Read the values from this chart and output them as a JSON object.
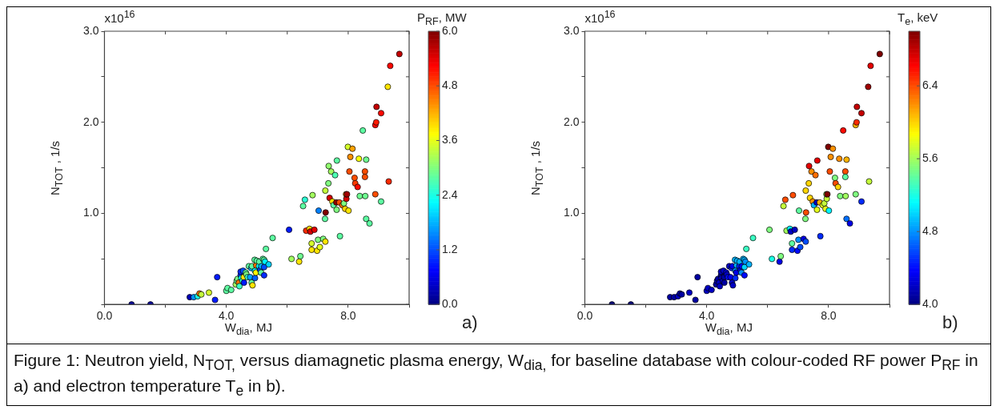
{
  "chart_data": [
    {
      "type": "scatter",
      "xlabel": "W$_{dia}$, MJ",
      "ylabel": "N$_{TOT}$ , 1/s",
      "clabel": "P$_{RF}$, MW",
      "marker": "circle",
      "annotations": [
        "x10$^{16}$",
        "a)",
        "Figure 1: Neutron yield, N$_{TOT,}$ versus diamagnetic plasma energy, W$_{dia,}$ for baseline database with colour-coded RF power P$_{RF}$ in a) and electron temperature T$_{e}$ in b)."
      ],
      "xlim": [
        0,
        10
      ],
      "ylim": [
        0,
        3
      ],
      "xticks": [
        {
          "value": 0,
          "label": "0.0"
        },
        {
          "value": 2,
          "label": null
        },
        {
          "value": 4,
          "label": "4.0"
        },
        {
          "value": 6,
          "label": null
        },
        {
          "value": 8,
          "label": "8.0"
        },
        {
          "value": 10,
          "label": null
        }
      ],
      "yticks": [
        {
          "value": 0,
          "label": null
        },
        {
          "value": 0.5,
          "label": null
        },
        {
          "value": 1,
          "label": "1.0"
        },
        {
          "value": 1.5,
          "label": null
        },
        {
          "value": 2,
          "label": "2.0"
        },
        {
          "value": 2.5,
          "label": null
        },
        {
          "value": 3,
          "label": "3.0"
        }
      ],
      "clim": [
        0,
        6
      ],
      "cticks": [
        {
          "value": 0,
          "label": "0.0"
        },
        {
          "value": 1.2,
          "label": "1.2"
        },
        {
          "value": 2.4,
          "label": "2.4"
        },
        {
          "value": 3.6,
          "label": "3.6"
        },
        {
          "value": 4.8,
          "label": "4.8"
        },
        {
          "value": 6,
          "label": "6.0"
        }
      ],
      "x": [
        0.89,
        1.51,
        2.8,
        2.93,
        3.06,
        3.12,
        3.18,
        3.43,
        3.63,
        3.7,
        4.0,
        4.04,
        4.16,
        4.31,
        4.34,
        4.37,
        4.41,
        4.43,
        4.47,
        4.47,
        4.49,
        4.53,
        4.57,
        4.55,
        4.58,
        4.64,
        4.66,
        4.7,
        4.74,
        4.78,
        4.82,
        4.83,
        4.86,
        4.84,
        4.94,
        4.94,
        4.93,
        4.97,
        4.98,
        5.0,
        5.07,
        5.08,
        5.11,
        5.14,
        5.15,
        5.2,
        5.24,
        5.24,
        5.27,
        5.24,
        5.39,
        5.3,
        5.52,
        6.06,
        6.14,
        6.39,
        6.43,
        6.52,
        6.58,
        6.62,
        6.73,
        6.76,
        6.8,
        6.8,
        6.83,
        6.89,
        6.98,
        7.01,
        7.03,
        7.07,
        7.18,
        7.24,
        7.25,
        7.25,
        7.26,
        7.35,
        7.36,
        7.39,
        7.44,
        7.48,
        7.52,
        7.57,
        7.61,
        7.62,
        7.63,
        7.73,
        7.71,
        7.81,
        7.86,
        7.9,
        7.94,
        7.93,
        7.96,
        8.01,
        7.99,
        8.04,
        8.07,
        8.14,
        8.21,
        8.23,
        8.31,
        8.35,
        8.38,
        8.48,
        8.55,
        8.55,
        8.56,
        8.59,
        8.59,
        8.7,
        8.89,
        8.92,
        8.93,
        8.89,
        9.08,
        9.08,
        9.3,
        9.33,
        9.38,
        9.68
      ],
      "values": [
        0.0,
        0.0,
        0.08,
        0.08,
        0.09,
        0.12,
        0.11,
        0.13,
        0.05,
        0.3,
        0.15,
        0.18,
        0.16,
        0.22,
        0.26,
        0.28,
        0.24,
        0.2,
        0.32,
        0.36,
        0.29,
        0.26,
        0.3,
        0.37,
        0.24,
        0.35,
        0.33,
        0.3,
        0.42,
        0.3,
        0.4,
        0.24,
        0.21,
        0.42,
        0.29,
        0.37,
        0.49,
        0.35,
        0.43,
        0.48,
        0.42,
        0.47,
        0.38,
        0.35,
        0.42,
        0.5,
        0.49,
        0.41,
        0.47,
        0.32,
        0.44,
        0.61,
        0.73,
        0.82,
        0.5,
        0.47,
        0.53,
        1.08,
        1.15,
        0.81,
        0.83,
        0.8,
        0.67,
        0.6,
        1.2,
        0.82,
        0.59,
        0.71,
        1.03,
        0.63,
        0.72,
        0.94,
        0.69,
        1.25,
        1.01,
        1.33,
        1.52,
        1.17,
        1.46,
        1.13,
        1.09,
        1.42,
        1.12,
        1.04,
        1.58,
        0.75,
        1.12,
        1.09,
        1.11,
        1.05,
        1.16,
        1.21,
        1.21,
        1.03,
        1.73,
        1.46,
        1.62,
        1.71,
        1.39,
        1.33,
        1.29,
        1.6,
        1.19,
        1.91,
        1.46,
        1.4,
        1.19,
        1.59,
        0.94,
        0.89,
        1.97,
        2.0,
        2.17,
        1.21,
        2.1,
        1.13,
        2.39,
        1.35,
        2.62,
        2.75
      ],
      "cvalues": [
        0.2,
        0.2,
        0.3,
        1.6,
        2.4,
        4.6,
        3.4,
        3.5,
        0.9,
        0.9,
        2.8,
        2.8,
        2.8,
        3.2,
        2.8,
        3.0,
        4.6,
        2.6,
        1.0,
        1.0,
        2.2,
        2.5,
        3.9,
        1.2,
        0.9,
        2.8,
        3.0,
        2.6,
        2.8,
        1.7,
        1.8,
        2.8,
        3.9,
        2.8,
        1.3,
        2.2,
        2.8,
        3.8,
        4.6,
        2.8,
        2.2,
        2.8,
        1.1,
        2.8,
        1.8,
        2.8,
        2.8,
        1.2,
        2.2,
        1.0,
        2.0,
        2.8,
        2.8,
        0.9,
        3.2,
        3.9,
        2.9,
        2.8,
        2.5,
        5.0,
        4.0,
        5.5,
        3.5,
        3.9,
        3.2,
        5.4,
        3.9,
        3.0,
        1.5,
        3.6,
        3.0,
        2.8,
        3.9,
        3.4,
        6.0,
        3.0,
        3.1,
        5.5,
        3.2,
        3.9,
        2.8,
        2.7,
        5.9,
        3.0,
        2.8,
        2.8,
        4.8,
        4.6,
        3.0,
        4.0,
        5.5,
        4.3,
        5.8,
        3.9,
        3.5,
        4.8,
        4.4,
        4.3,
        4.8,
        4.9,
        5.2,
        3.7,
        2.9,
        2.8,
        4.8,
        4.8,
        2.9,
        2.9,
        2.8,
        2.8,
        5.2,
        5.1,
        5.6,
        4.8,
        5.2,
        2.8,
        3.9,
        5.0,
        5.2,
        5.6
      ]
    },
    {
      "type": "scatter",
      "xlabel": "W$_{dia}$, MJ",
      "ylabel": "N$_{TOT}$ , 1/s",
      "clabel": "T$_{e}$, keV",
      "marker": "circle",
      "annotations": [
        "x10$^{16}$",
        "b)"
      ],
      "xlim": [
        0,
        10
      ],
      "ylim": [
        0,
        3
      ],
      "xticks": [
        {
          "value": 0,
          "label": "0.0"
        },
        {
          "value": 2,
          "label": null
        },
        {
          "value": 4,
          "label": "4.0"
        },
        {
          "value": 6,
          "label": null
        },
        {
          "value": 8,
          "label": "8.0"
        },
        {
          "value": 10,
          "label": null
        }
      ],
      "yticks": [
        {
          "value": 0,
          "label": null
        },
        {
          "value": 0.5,
          "label": null
        },
        {
          "value": 1,
          "label": "1.0"
        },
        {
          "value": 1.5,
          "label": null
        },
        {
          "value": 2,
          "label": "2.0"
        },
        {
          "value": 2.5,
          "label": null
        },
        {
          "value": 3,
          "label": "3.0"
        }
      ],
      "clim": [
        4,
        7
      ],
      "cticks": [
        {
          "value": 4,
          "label": "4.0"
        },
        {
          "value": 4.8,
          "label": "4.8"
        },
        {
          "value": 5.6,
          "label": "5.6"
        },
        {
          "value": 6.4,
          "label": "6.4"
        }
      ],
      "x": [
        0.89,
        1.51,
        2.8,
        2.93,
        3.06,
        3.12,
        3.18,
        3.43,
        3.63,
        3.7,
        4.0,
        4.04,
        4.16,
        4.31,
        4.34,
        4.37,
        4.41,
        4.43,
        4.47,
        4.47,
        4.49,
        4.53,
        4.57,
        4.55,
        4.58,
        4.64,
        4.66,
        4.7,
        4.74,
        4.78,
        4.82,
        4.83,
        4.86,
        4.84,
        4.94,
        4.94,
        4.93,
        4.97,
        4.98,
        5.0,
        5.07,
        5.08,
        5.11,
        5.14,
        5.15,
        5.2,
        5.24,
        5.24,
        5.27,
        5.24,
        5.39,
        5.3,
        5.52,
        6.06,
        6.14,
        6.39,
        6.43,
        6.52,
        6.58,
        6.62,
        6.73,
        6.76,
        6.8,
        6.8,
        6.83,
        6.89,
        6.98,
        7.01,
        7.03,
        7.07,
        7.18,
        7.24,
        7.25,
        7.25,
        7.26,
        7.35,
        7.36,
        7.39,
        7.44,
        7.48,
        7.52,
        7.57,
        7.61,
        7.62,
        7.63,
        7.73,
        7.71,
        7.81,
        7.86,
        7.9,
        7.94,
        7.93,
        7.96,
        8.01,
        7.99,
        8.04,
        8.07,
        8.14,
        8.21,
        8.23,
        8.31,
        8.35,
        8.38,
        8.48,
        8.55,
        8.55,
        8.56,
        8.59,
        8.59,
        8.7,
        8.89,
        8.92,
        8.93,
        8.89,
        9.08,
        9.08,
        9.3,
        9.33,
        9.38,
        9.68
      ],
      "values": [
        0.0,
        0.0,
        0.08,
        0.08,
        0.09,
        0.12,
        0.11,
        0.13,
        0.05,
        0.3,
        0.15,
        0.18,
        0.16,
        0.22,
        0.26,
        0.28,
        0.24,
        0.2,
        0.32,
        0.36,
        0.29,
        0.26,
        0.3,
        0.37,
        0.24,
        0.35,
        0.33,
        0.3,
        0.42,
        0.3,
        0.4,
        0.24,
        0.21,
        0.42,
        0.29,
        0.37,
        0.49,
        0.35,
        0.43,
        0.48,
        0.42,
        0.47,
        0.38,
        0.35,
        0.42,
        0.5,
        0.49,
        0.41,
        0.47,
        0.32,
        0.44,
        0.61,
        0.73,
        0.82,
        0.5,
        0.47,
        0.53,
        1.08,
        1.15,
        0.81,
        0.83,
        0.8,
        0.67,
        0.6,
        1.2,
        0.82,
        0.59,
        0.71,
        1.03,
        0.63,
        0.72,
        0.94,
        0.69,
        1.25,
        1.01,
        1.33,
        1.52,
        1.17,
        1.46,
        1.13,
        1.09,
        1.42,
        1.12,
        1.04,
        1.58,
        0.75,
        1.12,
        1.09,
        1.11,
        1.05,
        1.16,
        1.21,
        1.21,
        1.03,
        1.73,
        1.46,
        1.62,
        1.71,
        1.39,
        1.33,
        1.29,
        1.6,
        1.19,
        1.91,
        1.46,
        1.4,
        1.19,
        1.59,
        0.94,
        0.89,
        1.97,
        2.0,
        2.17,
        1.21,
        2.1,
        1.13,
        2.39,
        1.35,
        2.62,
        2.75
      ],
      "cvalues": [
        4.0,
        4.0,
        4.1,
        4.1,
        4.2,
        4.1,
        4.1,
        4.2,
        4.1,
        4.1,
        4.2,
        4.2,
        4.2,
        4.1,
        4.2,
        4.1,
        4.2,
        4.2,
        4.1,
        4.2,
        4.2,
        4.2,
        4.1,
        4.2,
        4.1,
        4.3,
        4.2,
        4.4,
        4.2,
        4.3,
        4.5,
        4.2,
        4.2,
        4.3,
        4.5,
        4.8,
        4.9,
        4.3,
        4.9,
        4.9,
        4.5,
        4.9,
        4.3,
        4.8,
        4.4,
        4.9,
        4.9,
        5.0,
        4.8,
        4.4,
        4.9,
        5.3,
        5.3,
        5.5,
        5.2,
        4.3,
        5.5,
        5.7,
        6.4,
        5.6,
        5.1,
        4.2,
        5.4,
        4.5,
        6.4,
        4.2,
        4.4,
        4.8,
        5.4,
        4.6,
        4.3,
        5.5,
        4.6,
        6.0,
        6.4,
        6.0,
        6.7,
        6.0,
        6.2,
        6.2,
        4.9,
        6.3,
        4.2,
        5.8,
        6.7,
        4.5,
        6.1,
        5.8,
        5.7,
        5.8,
        5.7,
        5.6,
        7.0,
        5.1,
        7.0,
        6.4,
        6.2,
        6.2,
        5.5,
        6.4,
        6.0,
        6.2,
        5.5,
        6.6,
        6.4,
        5.4,
        5.6,
        6.1,
        4.7,
        4.3,
        6.1,
        6.5,
        6.8,
        5.5,
        6.8,
        4.5,
        6.9,
        5.7,
        6.7,
        7.0
      ]
    }
  ]
}
